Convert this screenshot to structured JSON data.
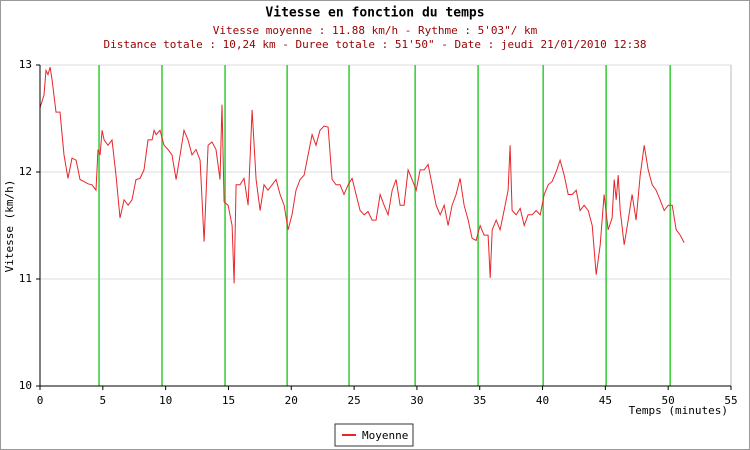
{
  "chart_data": {
    "type": "line",
    "title": "Vitesse en fonction du temps",
    "subtitle": [
      "Vitesse moyenne : 11.88 km/h - Rythme : 5'03\"/ km",
      "Distance totale : 10,24 km - Duree totale : 51'50\" - Date : jeudi 21/01/2010 12:38"
    ],
    "y_label": "Vitesse (km/h)",
    "x_label": "Temps (minutes)",
    "xlim": [
      0,
      55
    ],
    "ylim": [
      10,
      13
    ],
    "xticks": [
      0,
      5,
      10,
      15,
      20,
      25,
      30,
      35,
      40,
      45,
      50,
      55
    ],
    "yticks": [
      10,
      11,
      12,
      13
    ],
    "grid": true,
    "legend": "bottom",
    "x": [
      0,
      0.32,
      0.48,
      0.64,
      0.8,
      0.96,
      1.27,
      1.59,
      1.91,
      2.23,
      2.55,
      2.87,
      3.18,
      3.5,
      3.82,
      4.14,
      4.46,
      4.62,
      4.78,
      4.94,
      5.1,
      5.41,
      5.73,
      6.05,
      6.37,
      6.69,
      7.01,
      7.32,
      7.64,
      7.96,
      8.28,
      8.6,
      8.92,
      9.08,
      9.24,
      9.55,
      9.87,
      10.19,
      10.51,
      10.83,
      11.15,
      11.46,
      11.78,
      12.1,
      12.42,
      12.74,
      13.06,
      13.38,
      13.69,
      14.01,
      14.33,
      14.49,
      14.65,
      14.97,
      15.29,
      15.45,
      15.61,
      15.92,
      16.24,
      16.56,
      16.88,
      17.2,
      17.52,
      17.83,
      18.15,
      18.47,
      18.79,
      19.11,
      19.43,
      19.75,
      20.06,
      20.38,
      20.7,
      21.02,
      21.34,
      21.66,
      21.97,
      22.29,
      22.61,
      22.93,
      23.25,
      23.57,
      23.89,
      24.2,
      24.52,
      24.84,
      25.16,
      25.48,
      25.8,
      26.11,
      26.43,
      26.75,
      27.07,
      27.39,
      27.71,
      28.03,
      28.34,
      28.66,
      28.98,
      29.3,
      29.62,
      29.94,
      30.25,
      30.57,
      30.89,
      31.21,
      31.53,
      31.85,
      32.17,
      32.48,
      32.8,
      33.12,
      33.44,
      33.76,
      34.08,
      34.39,
      34.71,
      35.03,
      35.35,
      35.67,
      35.83,
      35.99,
      36.31,
      36.62,
      36.94,
      37.26,
      37.42,
      37.58,
      37.9,
      38.22,
      38.54,
      38.85,
      39.17,
      39.49,
      39.81,
      40.13,
      40.45,
      40.76,
      41.08,
      41.4,
      41.72,
      42.04,
      42.36,
      42.68,
      42.99,
      43.31,
      43.63,
      43.95,
      44.27,
      44.59,
      44.9,
      45.22,
      45.54,
      45.7,
      45.86,
      46.02,
      46.18,
      46.5,
      46.82,
      47.13,
      47.45,
      47.77,
      48.09,
      48.41,
      48.73,
      49.04,
      49.36,
      49.68,
      50,
      50.32,
      50.64,
      50.96,
      51.27
    ],
    "series": [
      {
        "name": "Moyenne",
        "color": "#e8262a",
        "values": [
          12.6,
          12.72,
          12.95,
          12.91,
          12.98,
          12.86,
          12.56,
          12.56,
          12.16,
          11.94,
          12.13,
          12.11,
          11.93,
          11.91,
          11.89,
          11.88,
          11.83,
          12.21,
          12.16,
          12.39,
          12.3,
          12.25,
          12.3,
          11.97,
          11.57,
          11.74,
          11.69,
          11.74,
          11.93,
          11.94,
          12.02,
          12.3,
          12.3,
          12.39,
          12.35,
          12.39,
          12.25,
          12.21,
          12.16,
          11.93,
          12.16,
          12.39,
          12.3,
          12.16,
          12.21,
          12.11,
          11.35,
          12.25,
          12.28,
          12.21,
          11.93,
          12.63,
          11.72,
          11.69,
          11.5,
          10.96,
          11.88,
          11.88,
          11.94,
          11.69,
          12.58,
          11.93,
          11.64,
          11.88,
          11.83,
          11.88,
          11.93,
          11.79,
          11.69,
          11.46,
          11.6,
          11.83,
          11.93,
          11.97,
          12.16,
          12.35,
          12.25,
          12.39,
          12.43,
          12.42,
          11.93,
          11.88,
          11.88,
          11.79,
          11.88,
          11.94,
          11.79,
          11.64,
          11.6,
          11.63,
          11.55,
          11.55,
          11.79,
          11.69,
          11.6,
          11.83,
          11.93,
          11.69,
          11.69,
          12.02,
          11.93,
          11.83,
          12.02,
          12.02,
          12.07,
          11.88,
          11.69,
          11.6,
          11.69,
          11.5,
          11.69,
          11.79,
          11.94,
          11.69,
          11.55,
          11.38,
          11.36,
          11.5,
          11.41,
          11.41,
          11.01,
          11.46,
          11.55,
          11.46,
          11.64,
          11.83,
          12.25,
          11.64,
          11.6,
          11.66,
          11.5,
          11.6,
          11.6,
          11.64,
          11.6,
          11.79,
          11.88,
          11.91,
          12,
          12.11,
          11.97,
          11.79,
          11.79,
          11.83,
          11.64,
          11.69,
          11.64,
          11.5,
          11.04,
          11.32,
          11.79,
          11.46,
          11.57,
          11.93,
          11.74,
          11.97,
          11.64,
          11.32,
          11.55,
          11.79,
          11.55,
          11.97,
          12.25,
          12.02,
          11.88,
          11.83,
          11.74,
          11.64,
          11.69,
          11.69,
          11.46,
          11.41,
          11.34
        ]
      }
    ],
    "markers": {
      "color": "#33cc33",
      "x": [
        4.7,
        9.71,
        14.73,
        19.67,
        24.6,
        29.86,
        34.87,
        40.05,
        45.06,
        50.16
      ]
    }
  }
}
